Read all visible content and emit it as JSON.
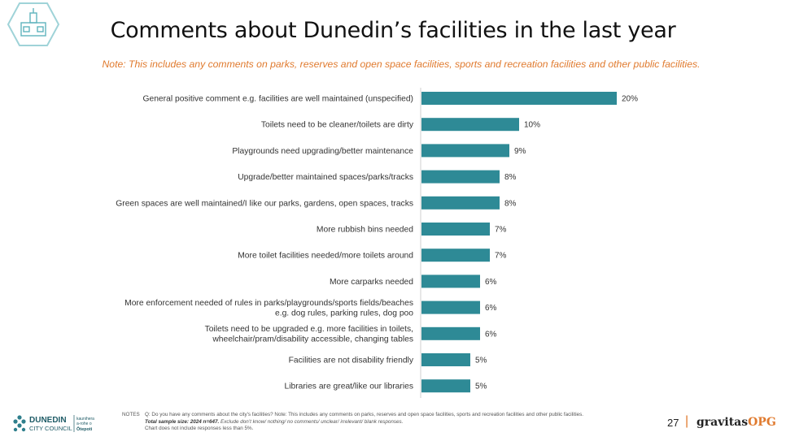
{
  "title": "Comments about Dunedin’s facilities in the last year",
  "note": "Note: This includes any comments on parks, reserves and open space facilities, sports and recreation facilities and other public facilities.",
  "chart_data": {
    "type": "bar",
    "orientation": "horizontal",
    "categories": [
      "General positive comment e.g. facilities are well maintained (unspecified)",
      "Toilets need to be cleaner/toilets are dirty",
      "Playgrounds need upgrading/better maintenance",
      "Upgrade/better maintained spaces/parks/tracks",
      "Green spaces are well maintained/I like our parks, gardens, open spaces, tracks",
      "More rubbish bins needed",
      "More toilet facilities needed/more toilets around",
      "More carparks needed",
      "More enforcement needed of rules in parks/playgrounds/sports fields/beaches\ne.g. dog rules, parking rules, dog poo",
      "Toilets need to be upgraded e.g. more facilities in toilets,\nwheelchair/pram/disability accessible, changing tables",
      "Facilities are not disability friendly",
      "Libraries are great/like our libraries"
    ],
    "values": [
      20,
      10,
      9,
      8,
      8,
      7,
      7,
      6,
      6,
      6,
      5,
      5
    ],
    "value_labels": [
      "20%",
      "10%",
      "9%",
      "8%",
      "8%",
      "7%",
      "7%",
      "6%",
      "6%",
      "6%",
      "5%",
      "5%"
    ],
    "value_unit": "%",
    "xlim": [
      0,
      20
    ],
    "bar_color": "#2e8a96",
    "grid": false,
    "legend": "none"
  },
  "footer": {
    "council_name_line1": "DUNEDIN",
    "council_name_line2": "CITY COUNCIL",
    "council_maori_line1": "kaunihera",
    "council_maori_line2": "a-rohe o",
    "council_maori_line3": "Ōtepoti",
    "notes_label": "NOTES",
    "notes_line1": "Q: Do you have any comments about the city's facilities? Note: This includes any comments on parks, reserves and open space facilities, sports and recreation facilities and other public facilities.",
    "notes_sample_bold": "Total sample size: 2024 n=647.",
    "notes_sample_rest": " Exclude don’t know/ nothing/ no comments/ unclear/ irrelevant/ blank responses.",
    "notes_line3": "Chart does not include responses less than 5%.",
    "page_number": "27",
    "separator": "|",
    "brand_main": "gravitas",
    "brand_accent": "OPG"
  },
  "colors": {
    "accent": "#e07a2e",
    "logo_teal": "#5fb3bd"
  }
}
